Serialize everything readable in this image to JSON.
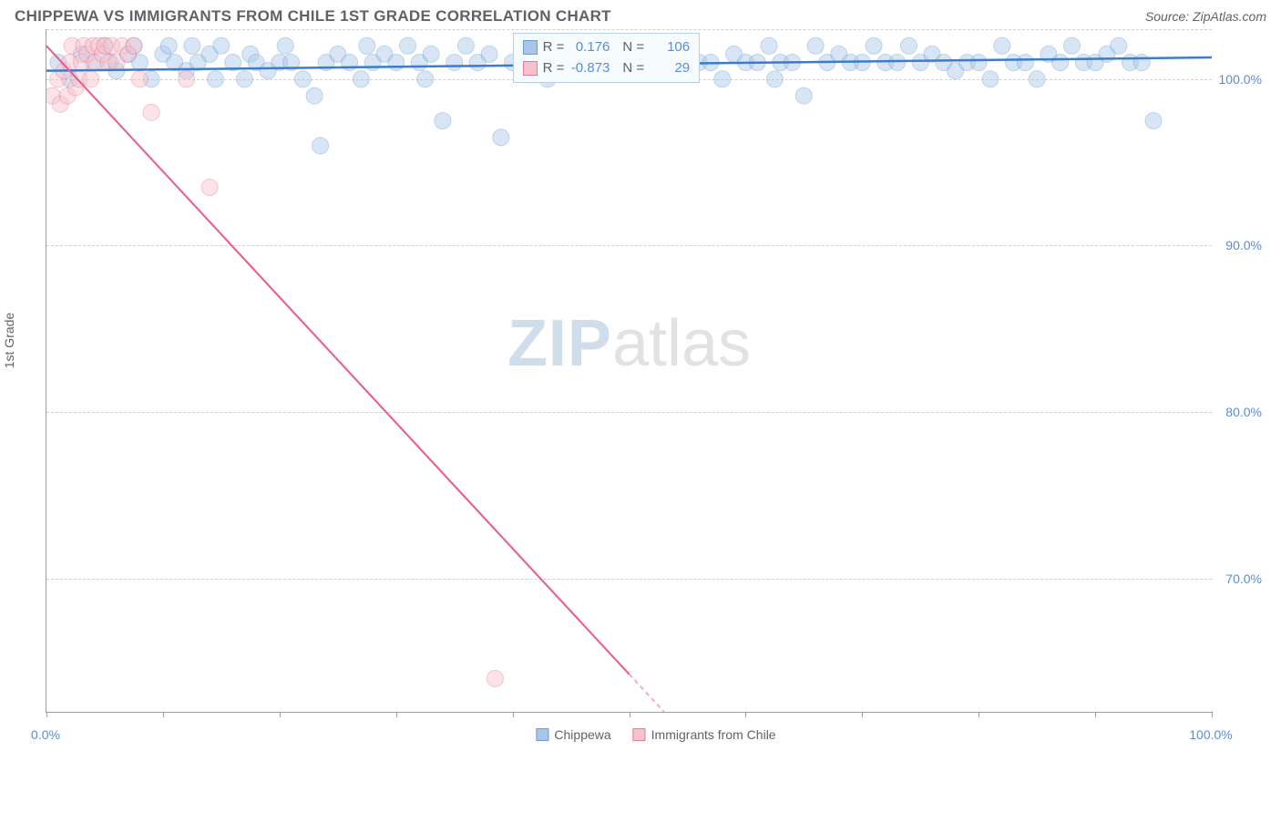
{
  "title": "CHIPPEWA VS IMMIGRANTS FROM CHILE 1ST GRADE CORRELATION CHART",
  "source": "Source: ZipAtlas.com",
  "y_axis_title": "1st Grade",
  "watermark": {
    "zip": "ZIP",
    "atlas": "atlas"
  },
  "chart": {
    "type": "scatter",
    "xlim": [
      0,
      100
    ],
    "ylim": [
      62,
      103
    ],
    "x_ticks": [
      0,
      10,
      20,
      30,
      40,
      50,
      60,
      70,
      80,
      90,
      100
    ],
    "x_tick_labels": {
      "0": "0.0%",
      "100": "100.0%"
    },
    "y_ticks": [
      70,
      80,
      90,
      100
    ],
    "y_tick_labels": {
      "70": "70.0%",
      "80": "80.0%",
      "90": "90.0%",
      "100": "100.0%"
    },
    "background_color": "#ffffff",
    "grid_color": "#d0d0d0",
    "axis_color": "#9e9e9e",
    "tick_label_color": "#5b8dd6",
    "title_color": "#5f6368",
    "title_fontsize": 17,
    "label_fontsize": 14,
    "marker_radius": 9,
    "marker_opacity": 0.45,
    "series": [
      {
        "name": "Chippewa",
        "color_fill": "#a9c6ea",
        "color_stroke": "#6d9cd4",
        "R": "0.176",
        "N": "106",
        "trend": {
          "x1": 0,
          "y1": 100.5,
          "x2": 100,
          "y2": 101.3,
          "color": "#3d7cc9",
          "width": 2.5
        },
        "points": [
          [
            1,
            101
          ],
          [
            2,
            100
          ],
          [
            3,
            101.5
          ],
          [
            4,
            101
          ],
          [
            5,
            102
          ],
          [
            5.5,
            101
          ],
          [
            6,
            100.5
          ],
          [
            7,
            101.5
          ],
          [
            7.5,
            102
          ],
          [
            8,
            101
          ],
          [
            9,
            100
          ],
          [
            10,
            101.5
          ],
          [
            10.5,
            102
          ],
          [
            11,
            101
          ],
          [
            12,
            100.5
          ],
          [
            12.5,
            102
          ],
          [
            13,
            101
          ],
          [
            14,
            101.5
          ],
          [
            14.5,
            100
          ],
          [
            15,
            102
          ],
          [
            16,
            101
          ],
          [
            17,
            100
          ],
          [
            17.5,
            101.5
          ],
          [
            18,
            101
          ],
          [
            19,
            100.5
          ],
          [
            20,
            101
          ],
          [
            20.5,
            102
          ],
          [
            21,
            101
          ],
          [
            22,
            100
          ],
          [
            23,
            99
          ],
          [
            23.5,
            96
          ],
          [
            24,
            101
          ],
          [
            25,
            101.5
          ],
          [
            26,
            101
          ],
          [
            27,
            100
          ],
          [
            27.5,
            102
          ],
          [
            28,
            101
          ],
          [
            29,
            101.5
          ],
          [
            30,
            101
          ],
          [
            31,
            102
          ],
          [
            32,
            101
          ],
          [
            32.5,
            100
          ],
          [
            33,
            101.5
          ],
          [
            34,
            97.5
          ],
          [
            35,
            101
          ],
          [
            36,
            102
          ],
          [
            37,
            101
          ],
          [
            38,
            101.5
          ],
          [
            39,
            96.5
          ],
          [
            40,
            101
          ],
          [
            41,
            102
          ],
          [
            42,
            101
          ],
          [
            43,
            100
          ],
          [
            44,
            101
          ],
          [
            45,
            101.5
          ],
          [
            46,
            101
          ],
          [
            47,
            102
          ],
          [
            48,
            101
          ],
          [
            49,
            101.5
          ],
          [
            50,
            101
          ],
          [
            51,
            101
          ],
          [
            52,
            102
          ],
          [
            53,
            101
          ],
          [
            54,
            101
          ],
          [
            55,
            101.5
          ],
          [
            56,
            101
          ],
          [
            57,
            101
          ],
          [
            58,
            100
          ],
          [
            59,
            101.5
          ],
          [
            60,
            101
          ],
          [
            61,
            101
          ],
          [
            62,
            102
          ],
          [
            62.5,
            100
          ],
          [
            63,
            101
          ],
          [
            64,
            101
          ],
          [
            65,
            99
          ],
          [
            66,
            102
          ],
          [
            67,
            101
          ],
          [
            68,
            101.5
          ],
          [
            69,
            101
          ],
          [
            70,
            101
          ],
          [
            71,
            102
          ],
          [
            72,
            101
          ],
          [
            73,
            101
          ],
          [
            74,
            102
          ],
          [
            75,
            101
          ],
          [
            76,
            101.5
          ],
          [
            77,
            101
          ],
          [
            78,
            100.5
          ],
          [
            79,
            101
          ],
          [
            80,
            101
          ],
          [
            81,
            100
          ],
          [
            82,
            102
          ],
          [
            83,
            101
          ],
          [
            84,
            101
          ],
          [
            85,
            100
          ],
          [
            86,
            101.5
          ],
          [
            87,
            101
          ],
          [
            88,
            102
          ],
          [
            89,
            101
          ],
          [
            90,
            101
          ],
          [
            91,
            101.5
          ],
          [
            92,
            102
          ],
          [
            93,
            101
          ],
          [
            94,
            101
          ],
          [
            95,
            97.5
          ]
        ]
      },
      {
        "name": "Immigrants from Chile",
        "color_fill": "#f7c2ce",
        "color_stroke": "#e97a98",
        "R": "-0.873",
        "N": "29",
        "trend": {
          "x1": 0,
          "y1": 102,
          "x2": 53,
          "y2": 62,
          "color": "#ea5a85",
          "width": 2,
          "dash_after_x": 50
        },
        "points": [
          [
            0.5,
            99
          ],
          [
            1,
            100
          ],
          [
            1.2,
            98.5
          ],
          [
            1.5,
            100.5
          ],
          [
            1.8,
            99
          ],
          [
            2,
            101
          ],
          [
            2.2,
            102
          ],
          [
            2.5,
            99.5
          ],
          [
            2.8,
            100
          ],
          [
            3,
            101
          ],
          [
            3.2,
            102
          ],
          [
            3.5,
            101.5
          ],
          [
            3.8,
            100
          ],
          [
            4,
            102
          ],
          [
            4.2,
            101
          ],
          [
            4.5,
            102
          ],
          [
            4.8,
            101.5
          ],
          [
            5,
            102
          ],
          [
            5.3,
            101
          ],
          [
            5.6,
            102
          ],
          [
            6,
            101
          ],
          [
            6.5,
            102
          ],
          [
            7,
            101.5
          ],
          [
            7.5,
            102
          ],
          [
            8,
            100
          ],
          [
            9,
            98
          ],
          [
            12,
            100
          ],
          [
            14,
            93.5
          ],
          [
            38.5,
            64
          ]
        ]
      }
    ]
  },
  "legend": [
    {
      "label": "Chippewa",
      "fill": "#a9c6ea",
      "stroke": "#6d9cd4"
    },
    {
      "label": "Immigrants from Chile",
      "fill": "#f7c2ce",
      "stroke": "#e97a98"
    }
  ],
  "stats_box": {
    "rows": [
      {
        "fill": "#a9c6ea",
        "stroke": "#6d9cd4",
        "r_label": "R =",
        "r_val": "0.176",
        "n_label": "N =",
        "n_val": "106"
      },
      {
        "fill": "#f7c2ce",
        "stroke": "#e97a98",
        "r_label": "R =",
        "r_val": "-0.873",
        "n_label": "N =",
        "n_val": "29"
      }
    ]
  }
}
